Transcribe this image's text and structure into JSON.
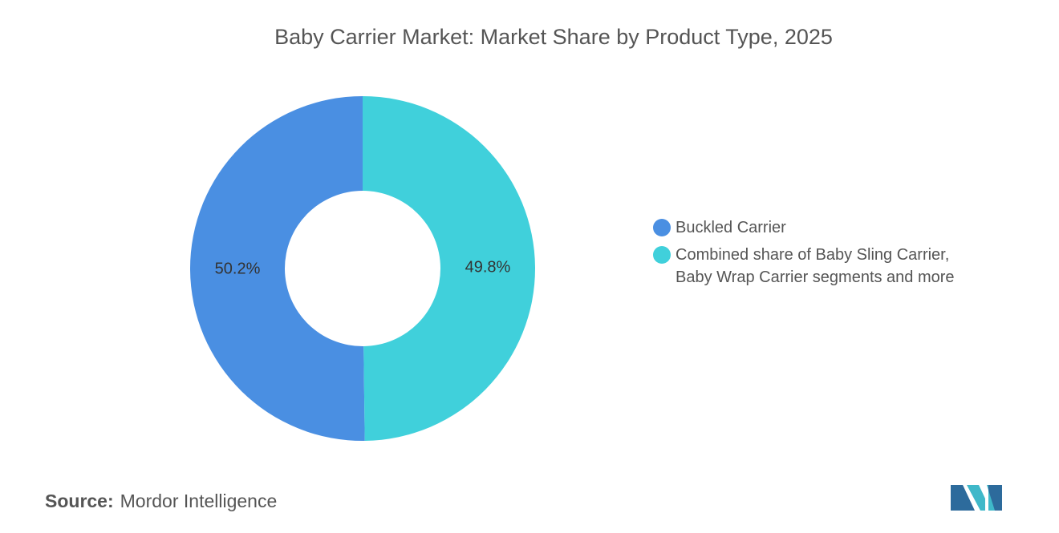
{
  "chart_data": {
    "type": "donut",
    "title": "Baby Carrier Market: Market Share by Product Type, 2025",
    "categories": [
      "Buckled Carrier",
      "Combined share of Baby Sling Carrier, Baby Wrap Carrier segments and more"
    ],
    "values": [
      50.2,
      49.8
    ],
    "value_labels": [
      "50.2%",
      "49.8%"
    ],
    "colors": [
      "#4a8fe2",
      "#40d0db"
    ],
    "legend": "right"
  },
  "footer": {
    "source_label": "Source:",
    "source": "Mordor Intelligence"
  }
}
